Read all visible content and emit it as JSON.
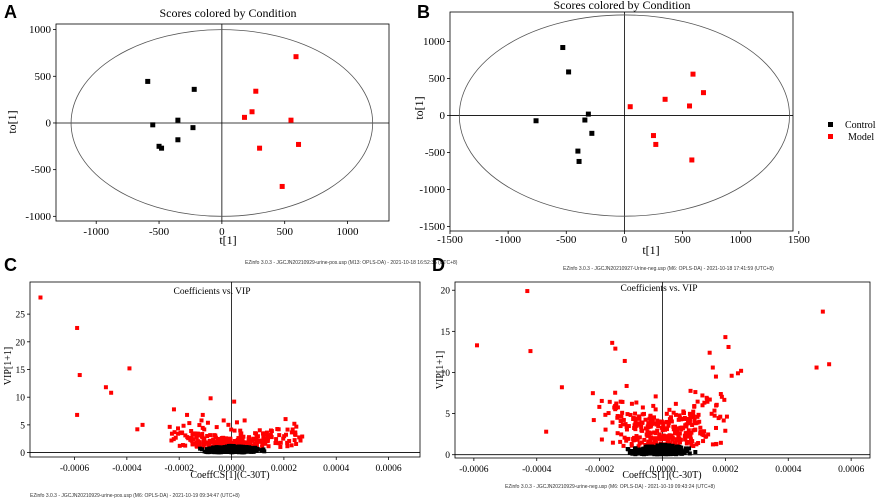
{
  "colors": {
    "control": "#000000",
    "model": "#ff0000",
    "axis": "#000000",
    "frame": "#000000"
  },
  "panels": {
    "A": {
      "letter": "A",
      "footer": "EZinfo 3.0.3 - JGCJN20210929-urine-pos.usp (M13: OPLS-DA) - 2021-10-18 16:52:36 (UTC+8)"
    },
    "B": {
      "letter": "B",
      "footer": "EZinfo 3.0.3 - JGCJN20210927-Urine-neg.usp (M6: OPLS-DA) - 2021-10-18 17:41:59 (UTC+8)"
    },
    "C": {
      "letter": "C",
      "footer": "EZinfo 3.0.3 - JGCJN20210929-urine-pos.usp (M6: OPLS-DA) - 2021-10-19 09:34:47 (UTC+8)"
    },
    "D": {
      "letter": "D",
      "footer": "EZinfo 3.0.3 - JGCJN20210929-urine-neg.usp (M6: OPLS-DA) - 2021-10-19 09:43:24 (UTC+8)"
    }
  },
  "legend": {
    "items": [
      "Control",
      "Model"
    ]
  },
  "chart_data": [
    {
      "id": "A",
      "type": "scatter",
      "title": "Scores colored by Condition",
      "xlabel": "t[1]",
      "ylabel": "to[1]",
      "xlim": [
        -1320,
        1330
      ],
      "ylim": [
        -1050,
        1060
      ],
      "xticks": [
        -1000,
        -500,
        0,
        500,
        1000
      ],
      "yticks": [
        -1000,
        -500,
        0,
        500,
        1000
      ],
      "ellipse": {
        "rx": 1200,
        "ry": 1000
      },
      "series": [
        {
          "name": "Control",
          "points": [
            [
              -590,
              445
            ],
            [
              -550,
              -20
            ],
            [
              -500,
              -250
            ],
            [
              -480,
              -270
            ],
            [
              -350,
              30
            ],
            [
              -350,
              -180
            ],
            [
              -230,
              -50
            ],
            [
              -220,
              360
            ]
          ]
        },
        {
          "name": "Model",
          "points": [
            [
              180,
              60
            ],
            [
              240,
              120
            ],
            [
              270,
              340
            ],
            [
              300,
              -270
            ],
            [
              480,
              -680
            ],
            [
              550,
              30
            ],
            [
              590,
              710
            ],
            [
              610,
              -230
            ]
          ]
        }
      ]
    },
    {
      "id": "B",
      "type": "scatter",
      "title": "Scores colored by Condition",
      "xlabel": "t[1]",
      "ylabel": "to[1]",
      "xlim": [
        -1500,
        1450
      ],
      "ylim": [
        -1560,
        1400
      ],
      "xticks": [
        -1500,
        -1000,
        -500,
        0,
        500,
        1000,
        1500
      ],
      "xticklabels": [
        "-1500",
        "-1000",
        "-500",
        "0",
        "500",
        "1000",
        "1500"
      ],
      "yticks": [
        -1500,
        -1000,
        -500,
        0,
        500,
        1000
      ],
      "ellipse": {
        "rx": 1420,
        "ry": 1360
      },
      "series": [
        {
          "name": "Control",
          "points": [
            [
              -760,
              -70
            ],
            [
              -530,
              920
            ],
            [
              -480,
              590
            ],
            [
              -400,
              -480
            ],
            [
              -390,
              -620
            ],
            [
              -340,
              -60
            ],
            [
              -310,
              20
            ],
            [
              -280,
              -240
            ]
          ]
        },
        {
          "name": "Model",
          "points": [
            [
              50,
              120
            ],
            [
              250,
              -270
            ],
            [
              270,
              -390
            ],
            [
              350,
              220
            ],
            [
              560,
              130
            ],
            [
              580,
              -600
            ],
            [
              590,
              560
            ],
            [
              680,
              310
            ]
          ]
        }
      ]
    },
    {
      "id": "C",
      "type": "scatter",
      "title": "Coefficients vs. VIP",
      "xlabel": "CoeffCS[1](C-30T)",
      "ylabel": "VIP[1+1]",
      "xlim": [
        -0.00077,
        0.00072
      ],
      "ylim": [
        -0.8,
        30.8
      ],
      "xticks": [
        -0.0006,
        -0.0004,
        -0.0002,
        0,
        0.0002,
        0.0004,
        0.0006
      ],
      "xticklabels": [
        "-0.0006",
        "-0.0004",
        "-0.0002",
        "0.0000",
        "0.0002",
        "0.0004",
        "0.0006"
      ],
      "yticks": [
        0,
        5,
        10,
        15,
        20,
        25
      ],
      "series": [
        {
          "name": "Model",
          "points": [
            [
              -0.00073,
              28
            ],
            [
              -0.00059,
              22.5
            ],
            [
              -0.00058,
              14
            ],
            [
              -0.00059,
              6.8
            ],
            [
              -0.00048,
              11.8
            ],
            [
              -0.00046,
              10.8
            ],
            [
              -0.00039,
              15.2
            ],
            [
              -0.00036,
              4.2
            ],
            [
              -0.00034,
              5
            ],
            [
              -0.00022,
              7.8
            ],
            [
              -0.00017,
              6.8
            ],
            [
              -0.00011,
              6.8
            ],
            [
              -8e-05,
              9.8
            ],
            [
              -3e-05,
              5.8
            ],
            [
              1e-05,
              9.2
            ],
            [
              5e-05,
              5.8
            ],
            [
              9e-05,
              3.5
            ],
            [
              0.00015,
              3.2
            ],
            [
              0.00018,
              4.2
            ],
            [
              0.00024,
              5.2
            ],
            [
              0.00027,
              2.9
            ]
          ]
        },
        {
          "name": "Control",
          "points": []
        }
      ],
      "cloud": {
        "x_range": [
          -0.00026,
          0.00029
        ],
        "model_count": 260,
        "control_count": 330
      }
    },
    {
      "id": "D",
      "type": "scatter",
      "title": "Coefficients vs. VIP",
      "xlabel": "CoeffCS[1](C-30T)",
      "ylabel": "VIP[1+1]",
      "xlim": [
        -0.00066,
        0.00066
      ],
      "ylim": [
        -0.4,
        21
      ],
      "xticks": [
        -0.0006,
        -0.0004,
        -0.0002,
        0,
        0.0002,
        0.0004,
        0.0006
      ],
      "xticklabels": [
        "-0.0006",
        "-0.0004",
        "-0.0002",
        "0.0000",
        "0.0002",
        "0.0004",
        "0.0006"
      ],
      "yticks": [
        0,
        5,
        10,
        15,
        20
      ],
      "series": [
        {
          "name": "Model",
          "points": [
            [
              -0.00059,
              13.3
            ],
            [
              -0.00043,
              19.9
            ],
            [
              -0.00042,
              12.6
            ],
            [
              -0.00032,
              8.2
            ],
            [
              -0.00037,
              2.8
            ],
            [
              -0.00016,
              13.6
            ],
            [
              -0.00015,
              12.9
            ],
            [
              -0.00012,
              11.4
            ],
            [
              0.00015,
              12.4
            ],
            [
              0.00016,
              10.6
            ],
            [
              0.00017,
              9.5
            ],
            [
              0.0002,
              14.3
            ],
            [
              0.00021,
              13.1
            ],
            [
              0.00022,
              9.6
            ],
            [
              0.00024,
              9.9
            ],
            [
              0.00025,
              10.2
            ],
            [
              0.00049,
              10.6
            ],
            [
              0.00051,
              17.4
            ],
            [
              0.00053,
              11
            ]
          ]
        },
        {
          "name": "Control",
          "points": []
        }
      ],
      "cloud": {
        "x_range": [
          -0.00024,
          0.00024
        ],
        "model_count": 320,
        "control_count": 340
      }
    }
  ]
}
